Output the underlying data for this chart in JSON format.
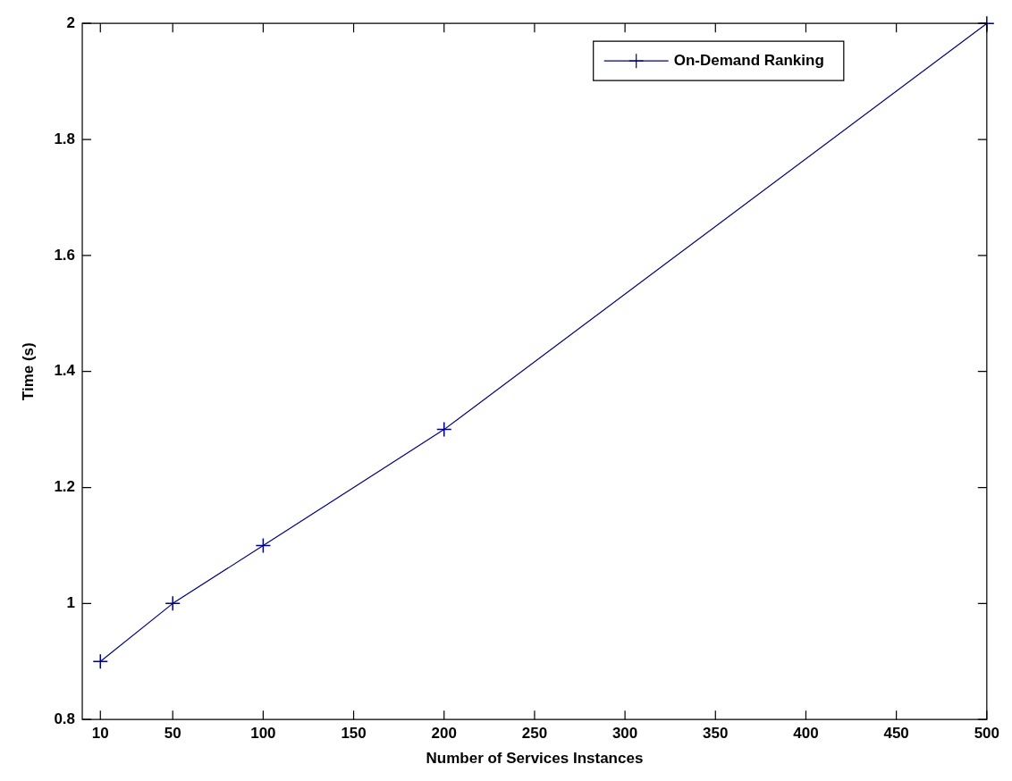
{
  "chart_data": {
    "type": "line",
    "xlabel": "Number of Services Instances",
    "ylabel": "Time (s)",
    "x": [
      10,
      50,
      100,
      200,
      500
    ],
    "series": [
      {
        "name": "On-Demand Ranking",
        "color": "#000080",
        "values": [
          0.9,
          1.0,
          1.1,
          1.3,
          2.0
        ]
      }
    ],
    "xlim": [
      0,
      500
    ],
    "xticks": [
      10,
      50,
      100,
      150,
      200,
      250,
      300,
      350,
      400,
      450,
      500
    ],
    "ylim": [
      0.8,
      2
    ],
    "yticks": [
      0.8,
      1,
      1.2,
      1.4,
      1.6,
      1.8,
      2
    ],
    "grid": false,
    "legend": "top right",
    "marker": "cross",
    "line_style": "solid"
  }
}
